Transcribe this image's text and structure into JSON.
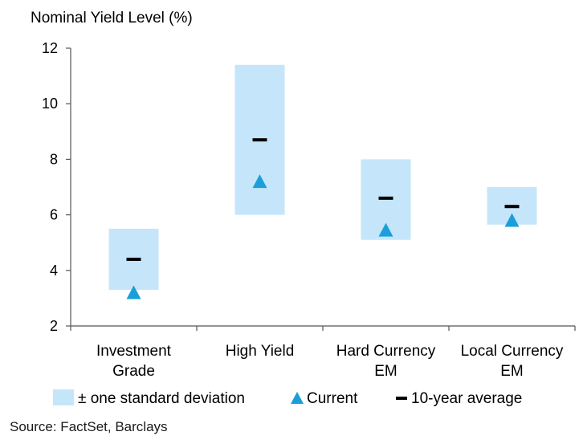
{
  "chart_data": {
    "type": "range",
    "title": "Nominal Yield Level (%)",
    "ylim": [
      2,
      12
    ],
    "yticks": [
      2,
      4,
      6,
      8,
      10,
      12
    ],
    "categories": [
      {
        "lines": [
          "Investment",
          "Grade"
        ],
        "low": 3.3,
        "high": 5.5,
        "average": 4.4,
        "current": 3.2
      },
      {
        "lines": [
          "High Yield"
        ],
        "low": 6.0,
        "high": 11.4,
        "average": 8.7,
        "current": 7.2
      },
      {
        "lines": [
          "Hard Currency",
          "EM"
        ],
        "low": 5.1,
        "high": 8.0,
        "average": 6.6,
        "current": 5.45
      },
      {
        "lines": [
          "Local Currency",
          "EM"
        ],
        "low": 5.65,
        "high": 7.0,
        "average": 6.3,
        "current": 5.8
      }
    ],
    "legend": {
      "range": "± one standard deviation",
      "current": "Current",
      "average": "10-year average"
    },
    "colors": {
      "range": "#c5e6fa",
      "current": "#1a9fdb",
      "average": "#000000",
      "axis": "#555555"
    }
  },
  "source": "Source: FactSet, Barclays"
}
